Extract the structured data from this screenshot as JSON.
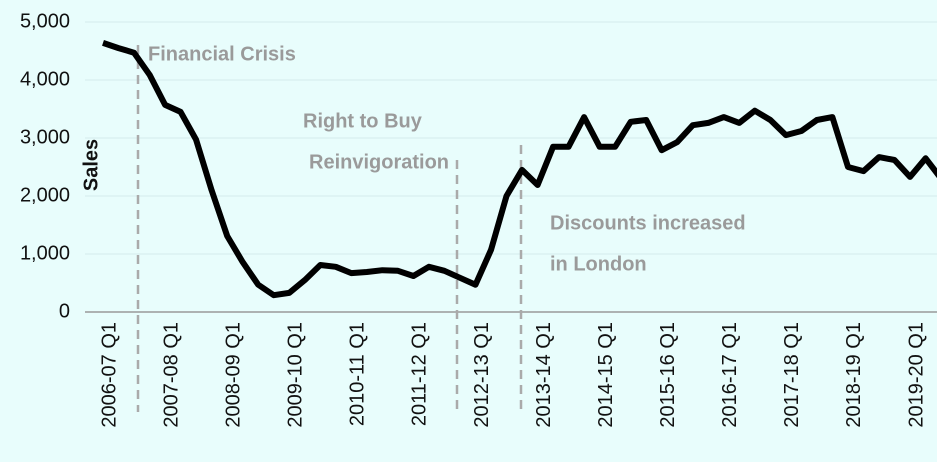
{
  "chart_data": {
    "type": "line",
    "y_label": "Sales",
    "categories": [
      "2006-07  Q1",
      null,
      null,
      null,
      "2007-08  Q1",
      null,
      null,
      null,
      "2008-09  Q1",
      null,
      null,
      null,
      "2009-10  Q1",
      null,
      null,
      null,
      "2010-11  Q1",
      null,
      null,
      null,
      "2011-12  Q1",
      null,
      null,
      null,
      "2012-13  Q1",
      null,
      null,
      null,
      "2013-14  Q1",
      null,
      null,
      null,
      "2014-15  Q1",
      null,
      null,
      null,
      "2015-16  Q1",
      null,
      null,
      null,
      "2016-17  Q1",
      null,
      null,
      null,
      "2017-18  Q1",
      null,
      null,
      null,
      "2018-19  Q1",
      null,
      null,
      null,
      "2019-20  Q1",
      null,
      null
    ],
    "series": [
      {
        "name": "Sales",
        "color": "#000000",
        "values": [
          4640,
          4550,
          4470,
          4090,
          3570,
          3450,
          2970,
          2100,
          1310,
          860,
          470,
          290,
          330,
          550,
          810,
          780,
          670,
          690,
          720,
          710,
          620,
          780,
          710,
          590,
          470,
          1070,
          2000,
          2450,
          2190,
          2850,
          2850,
          3360,
          2850,
          2850,
          3280,
          3310,
          2790,
          2930,
          3220,
          3260,
          3360,
          3260,
          3470,
          3310,
          3050,
          3120,
          3310,
          3360,
          2500,
          2430,
          2670,
          2620,
          2330,
          2650,
          2300
        ]
      }
    ],
    "ylim": [
      0,
      5000
    ],
    "yticks": [
      0,
      {
        "value": 1000,
        "label": "1,000"
      },
      {
        "value": 2000,
        "label": "2,000"
      },
      {
        "value": 3000,
        "label": "3,000"
      },
      {
        "value": 4000,
        "label": "4,000"
      },
      {
        "value": 5000,
        "label": "5,000"
      }
    ],
    "grid": true,
    "annotations": [
      "Financial Crisis",
      "Right to Buy",
      "Reinvigoration",
      "Discounts increased",
      "in London"
    ]
  }
}
